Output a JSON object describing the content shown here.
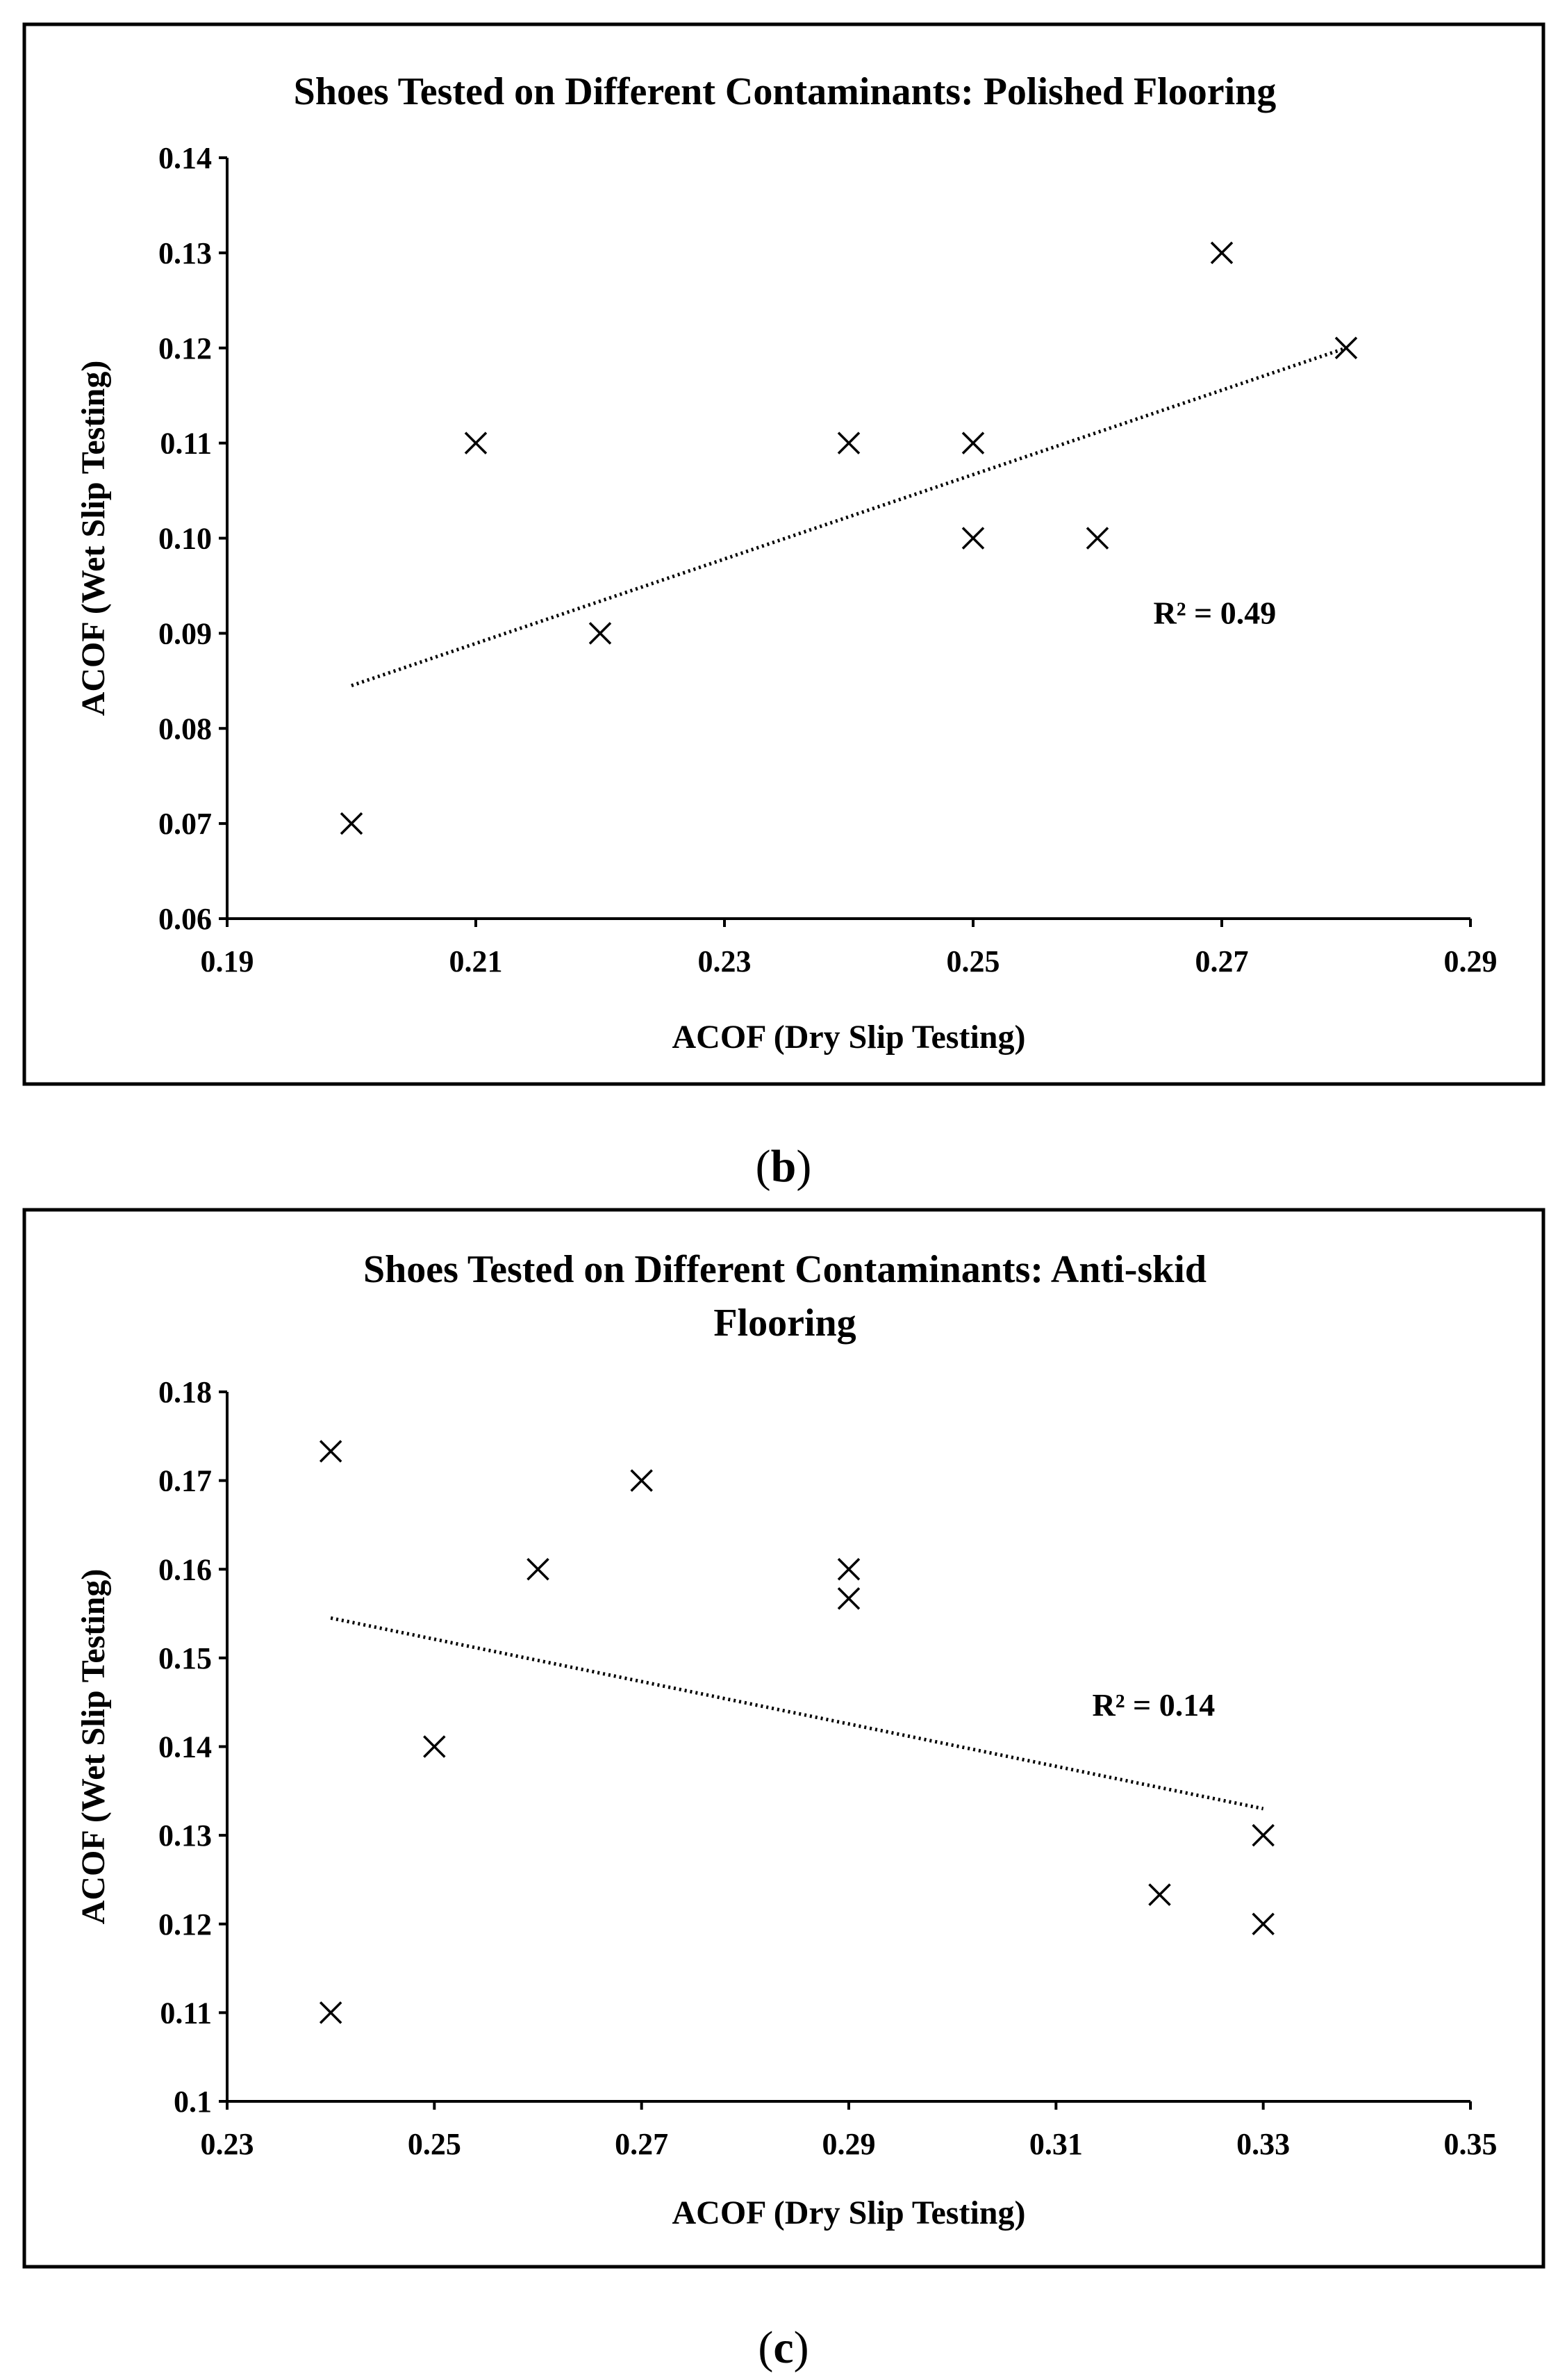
{
  "chart_data": [
    {
      "type": "scatter",
      "panel_label": "b",
      "title_lines": [
        "Shoes Tested on Different Contaminants: Polished Flooring"
      ],
      "xlabel": "ACOF (Dry Slip Testing)",
      "ylabel": "ACOF (Wet Slip Testing)",
      "xlim": [
        0.19,
        0.29
      ],
      "ylim": [
        0.06,
        0.14
      ],
      "xticks": [
        "0.19",
        "0.21",
        "0.23",
        "0.25",
        "0.27",
        "0.29"
      ],
      "yticks": [
        "0.06",
        "0.07",
        "0.08",
        "0.09",
        "0.10",
        "0.11",
        "0.12",
        "0.13",
        "0.14"
      ],
      "grid": false,
      "points": [
        [
          0.2,
          0.07
        ],
        [
          0.21,
          0.11
        ],
        [
          0.22,
          0.09
        ],
        [
          0.24,
          0.11
        ],
        [
          0.25,
          0.11
        ],
        [
          0.25,
          0.1
        ],
        [
          0.26,
          0.1
        ],
        [
          0.27,
          0.13
        ],
        [
          0.28,
          0.12
        ]
      ],
      "trendline": {
        "style": "dotted linear",
        "from": [
          0.2,
          0.0845
        ],
        "to": [
          0.28,
          0.12
        ]
      },
      "r2_label": "R² = 0.49",
      "r2_anchor": [
        0.2645,
        0.091
      ]
    },
    {
      "type": "scatter",
      "panel_label": "c",
      "title_lines": [
        "Shoes Tested on Different Contaminants: Anti-skid",
        "Flooring"
      ],
      "xlabel": "ACOF (Dry Slip Testing)",
      "ylabel": "ACOF (Wet Slip Testing)",
      "xlim": [
        0.23,
        0.35
      ],
      "ylim": [
        0.1,
        0.18
      ],
      "xticks": [
        "0.23",
        "0.25",
        "0.27",
        "0.29",
        "0.31",
        "0.33",
        "0.35"
      ],
      "yticks": [
        "0.1",
        "0.11",
        "0.12",
        "0.13",
        "0.14",
        "0.15",
        "0.16",
        "0.17",
        "0.18"
      ],
      "grid": false,
      "points": [
        [
          0.24,
          0.1733
        ],
        [
          0.27,
          0.17
        ],
        [
          0.26,
          0.16
        ],
        [
          0.29,
          0.16
        ],
        [
          0.29,
          0.1567
        ],
        [
          0.25,
          0.14
        ],
        [
          0.33,
          0.13
        ],
        [
          0.32,
          0.1233
        ],
        [
          0.33,
          0.12
        ],
        [
          0.24,
          0.11
        ]
      ],
      "trendline": {
        "style": "dotted linear",
        "from": [
          0.24,
          0.1545
        ],
        "to": [
          0.33,
          0.133
        ]
      },
      "r2_label": "R² = 0.14",
      "r2_anchor": [
        0.3135,
        0.1435
      ]
    }
  ]
}
